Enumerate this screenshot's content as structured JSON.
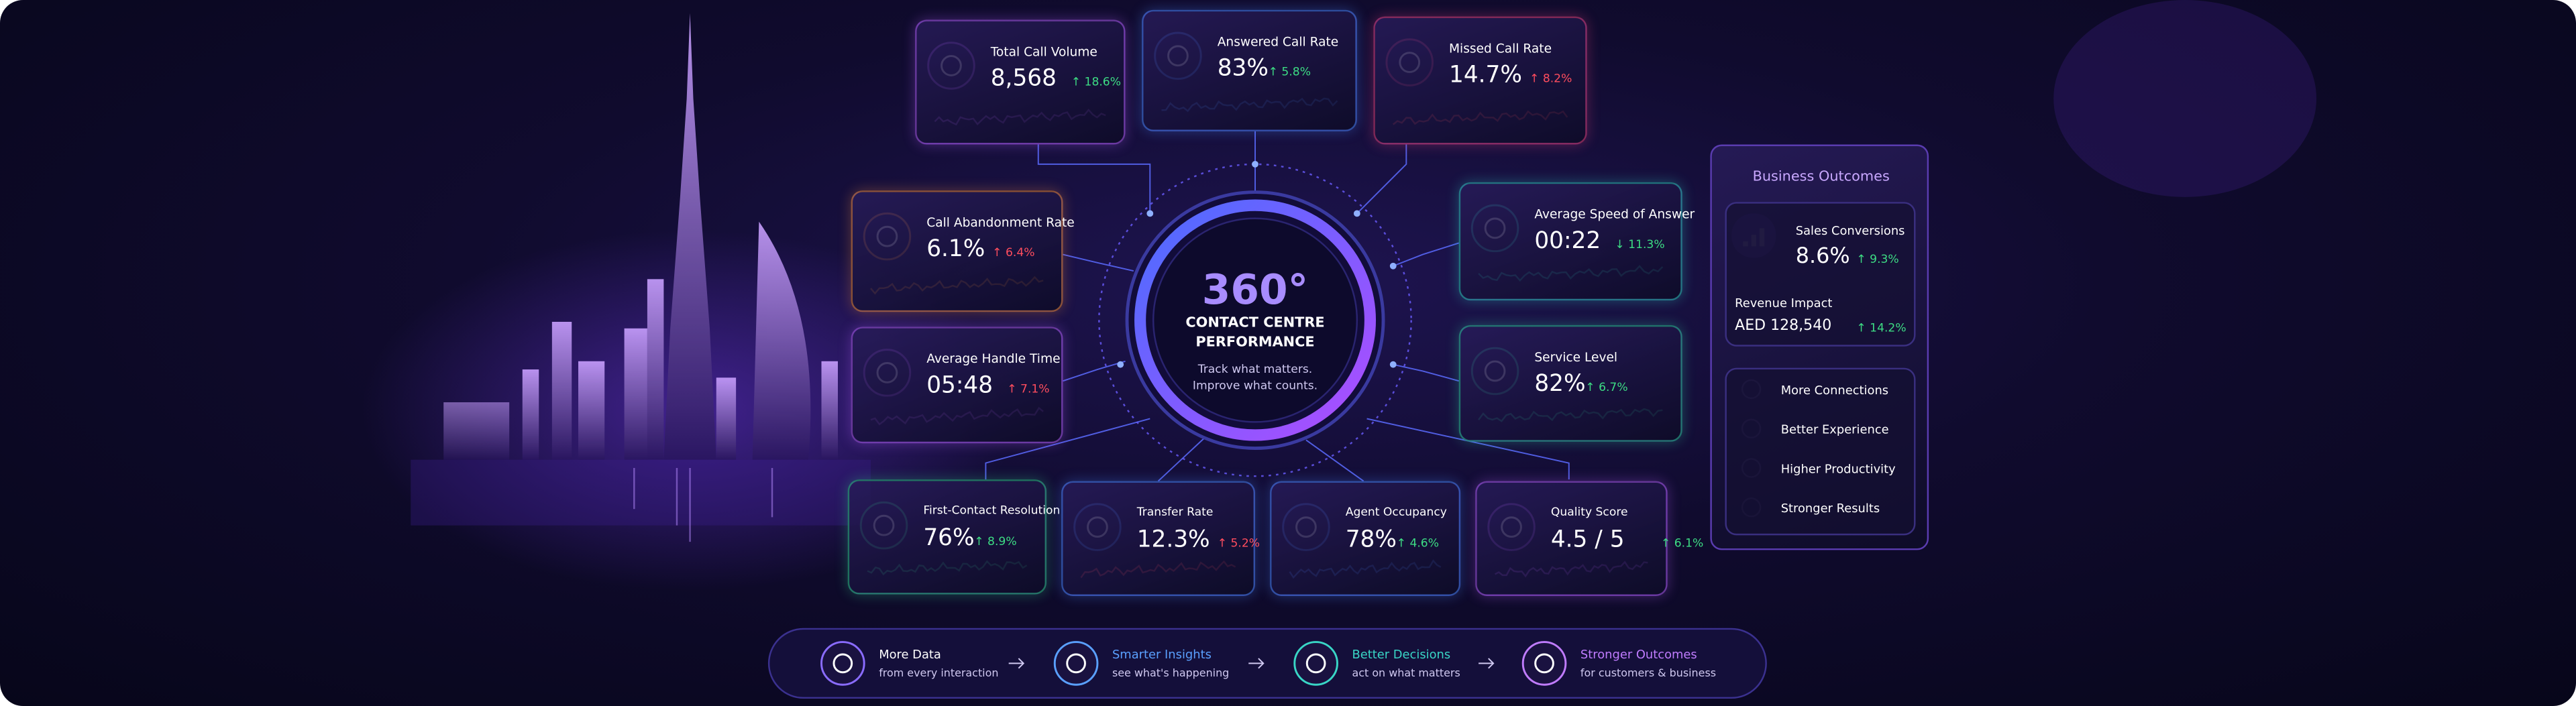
{
  "hero": {
    "title": "360°",
    "subtitle_lines": [
      "CONTACT CENTRE",
      "PERFORMANCE"
    ],
    "tagline_lines": [
      "Track what matters.",
      "Improve what counts."
    ]
  },
  "metrics": [
    {
      "label": "Total Call Volume",
      "value": "8,568",
      "change": "↑ 18.6%",
      "change_color": "#3ddc84",
      "accent": "#b05cf5"
    },
    {
      "label": "Answered Call Rate",
      "value": "83%",
      "change": "↑ 5.8%",
      "change_color": "#3ddc84",
      "accent": "#4a86ff"
    },
    {
      "label": "Missed Call Rate",
      "value": "14.7%",
      "change": "↑ 8.2%",
      "change_color": "#ff4d5e",
      "accent": "#e0407a"
    },
    {
      "label": "Call Abandonment Rate",
      "value": "6.1%",
      "change": "↑ 6.4%",
      "change_color": "#ff4d5e",
      "accent": "#f08a3c"
    },
    {
      "label": "Average Handle Time",
      "value": "05:48",
      "change": "↑ 7.1%",
      "change_color": "#ff4d5e",
      "accent": "#b05cf5"
    },
    {
      "label": "Average Speed of Answer",
      "value": "00:22",
      "change": "↓ 11.3%",
      "change_color": "#3ddc84",
      "accent": "#2fc9c0"
    },
    {
      "label": "Service Level",
      "value": "82%",
      "change": "↑ 6.7%",
      "change_color": "#3ddc84",
      "accent": "#2fc9a0"
    },
    {
      "label": "First-Contact Resolution",
      "value": "76%",
      "change": "↑ 8.9%",
      "change_color": "#3ddc84",
      "accent": "#2fc98a"
    },
    {
      "label": "Transfer Rate",
      "value": "12.3%",
      "change": "↑ 5.2%",
      "change_color": "#ff4d5e",
      "accent": "#4a86ff"
    },
    {
      "label": "Agent Occupancy",
      "value": "78%",
      "change": "↑ 4.6%",
      "change_color": "#3ddc84",
      "accent": "#4a86ff"
    },
    {
      "label": "Quality Score",
      "value": "4.5 / 5",
      "change": "↑ 6.1%",
      "change_color": "#3ddc84",
      "accent": "#b05cf5"
    }
  ],
  "business_outcomes": {
    "title": "Business Outcomes",
    "sales": {
      "label": "Sales Conversions",
      "value": "8.6%",
      "change": "↑ 9.3%"
    },
    "revenue": {
      "label": "Revenue Impact",
      "value": "AED 128,540",
      "change": "↑ 14.2%"
    },
    "benefits": [
      "More Connections",
      "Better Experience",
      "Higher Productivity",
      "Stronger Results"
    ]
  },
  "flow": [
    {
      "title": "More Data",
      "subtitle": "from every interaction",
      "color": "#ffffff"
    },
    {
      "title": "Smarter Insights",
      "subtitle": "see what's happening",
      "color": "#5aa0ff"
    },
    {
      "title": "Better Decisions",
      "subtitle": "act on what matters",
      "color": "#39d6c6"
    },
    {
      "title": "Stronger Outcomes",
      "subtitle": "for customers & business",
      "color": "#c07cff"
    }
  ]
}
